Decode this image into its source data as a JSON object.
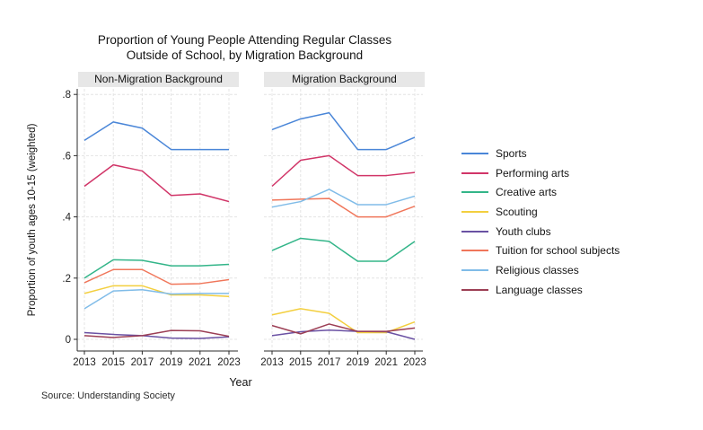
{
  "title": {
    "line1": "Proportion of Young People Attending Regular Classes",
    "line2": "Outside of School, by Migration Background"
  },
  "y_axis": {
    "label": "Proportion of youth ages 10-15 (weighted)",
    "tick_labels": [
      "0",
      ".2",
      ".4",
      ".6",
      ".8"
    ],
    "tick_values": [
      0,
      0.2,
      0.4,
      0.6,
      0.8
    ]
  },
  "x_axis": {
    "label": "Year",
    "years": [
      "2013",
      "2015",
      "2017",
      "2019",
      "2021",
      "2023"
    ]
  },
  "source_note": "Source: Understanding Society",
  "colors": {
    "sports": "#4a86d8",
    "performing_arts": "#d13568",
    "creative_arts": "#33b589",
    "scouting": "#f3cf3f",
    "youth_clubs": "#6a51a3",
    "tuition": "#f0765a",
    "religious": "#80bce8",
    "language": "#9c3f55",
    "panel_header_bg": "#e7e7e7",
    "gridline": "#e4e4e4"
  },
  "chart_data": {
    "type": "line",
    "title": "Proportion of Young People Attending Regular Classes Outside of School, by Migration Background",
    "xlabel": "Year",
    "ylabel": "Proportion of youth ages 10-15 (weighted)",
    "ylim": [
      0,
      0.8
    ],
    "grid": true,
    "legend_position": "right",
    "x": [
      2013,
      2015,
      2017,
      2019,
      2021,
      2023
    ],
    "panels": [
      {
        "title": "Non-Migration Background",
        "series": [
          {
            "name": "Sports",
            "color": "#4a86d8",
            "values": [
              0.65,
              0.71,
              0.69,
              0.62,
              0.62,
              0.62
            ]
          },
          {
            "name": "Performing arts",
            "color": "#d13568",
            "values": [
              0.5,
              0.57,
              0.55,
              0.47,
              0.475,
              0.45
            ]
          },
          {
            "name": "Creative arts",
            "color": "#33b589",
            "values": [
              0.2,
              0.26,
              0.258,
              0.24,
              0.24,
              0.245
            ]
          },
          {
            "name": "Scouting",
            "color": "#f3cf3f",
            "values": [
              0.15,
              0.175,
              0.175,
              0.145,
              0.145,
              0.14
            ]
          },
          {
            "name": "Youth clubs",
            "color": "#6a51a3",
            "values": [
              0.022,
              0.016,
              0.012,
              0.004,
              0.003,
              0.008
            ]
          },
          {
            "name": "Tuition for school subjects",
            "color": "#f0765a",
            "values": [
              0.185,
              0.228,
              0.228,
              0.18,
              0.182,
              0.195
            ]
          },
          {
            "name": "Religious classes",
            "color": "#80bce8",
            "values": [
              0.1,
              0.158,
              0.162,
              0.148,
              0.15,
              0.15
            ]
          },
          {
            "name": "Language classes",
            "color": "#9c3f55",
            "values": [
              0.012,
              0.006,
              0.012,
              0.029,
              0.028,
              0.01
            ]
          }
        ]
      },
      {
        "title": "Migration Background",
        "series": [
          {
            "name": "Sports",
            "color": "#4a86d8",
            "values": [
              0.685,
              0.72,
              0.74,
              0.62,
              0.62,
              0.66
            ]
          },
          {
            "name": "Performing arts",
            "color": "#d13568",
            "values": [
              0.5,
              0.585,
              0.6,
              0.535,
              0.535,
              0.545
            ]
          },
          {
            "name": "Creative arts",
            "color": "#33b589",
            "values": [
              0.29,
              0.33,
              0.32,
              0.255,
              0.255,
              0.32
            ]
          },
          {
            "name": "Scouting",
            "color": "#f3cf3f",
            "values": [
              0.08,
              0.1,
              0.085,
              0.022,
              0.022,
              0.057
            ]
          },
          {
            "name": "Youth clubs",
            "color": "#6a51a3",
            "values": [
              0.012,
              0.025,
              0.03,
              0.026,
              0.025,
              0.0
            ]
          },
          {
            "name": "Tuition for school subjects",
            "color": "#f0765a",
            "values": [
              0.455,
              0.458,
              0.46,
              0.4,
              0.4,
              0.435
            ]
          },
          {
            "name": "Religious classes",
            "color": "#80bce8",
            "values": [
              0.432,
              0.45,
              0.49,
              0.44,
              0.44,
              0.468
            ]
          },
          {
            "name": "Language classes",
            "color": "#9c3f55",
            "values": [
              0.045,
              0.018,
              0.05,
              0.026,
              0.026,
              0.037
            ]
          }
        ]
      }
    ]
  }
}
